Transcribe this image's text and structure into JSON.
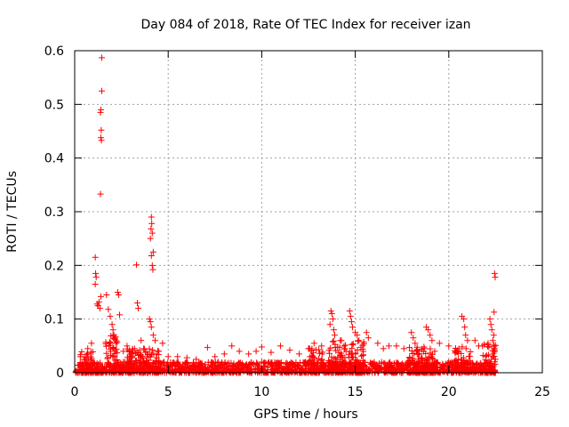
{
  "chart_data": {
    "type": "scatter",
    "title": "Day 084 of 2018, Rate Of TEC Index for receiver izan",
    "xlabel": "GPS time / hours",
    "ylabel": "ROTI / TECUs",
    "xlim": [
      0,
      25
    ],
    "ylim": [
      0,
      0.6
    ],
    "xticks": [
      0,
      5,
      10,
      15,
      20,
      25
    ],
    "xtick_labels": [
      "0",
      "5",
      "10",
      "15",
      "20",
      "25"
    ],
    "yticks": [
      0,
      0.1,
      0.2,
      0.3,
      0.4,
      0.5,
      0.6
    ],
    "ytick_labels": [
      "0",
      "0.1",
      "0.2",
      "0.3",
      "0.4",
      "0.5",
      "0.6"
    ],
    "grid": true,
    "marker": "plus",
    "color": "#ff0000",
    "series": [
      {
        "name": "ROTI",
        "points": [
          [
            1.45,
            0.587
          ],
          [
            1.45,
            0.525
          ],
          [
            1.4,
            0.49
          ],
          [
            1.38,
            0.485
          ],
          [
            1.42,
            0.452
          ],
          [
            1.4,
            0.438
          ],
          [
            1.43,
            0.433
          ],
          [
            1.38,
            0.333
          ],
          [
            1.1,
            0.215
          ],
          [
            1.12,
            0.185
          ],
          [
            1.15,
            0.178
          ],
          [
            1.1,
            0.165
          ],
          [
            1.2,
            0.128
          ],
          [
            1.25,
            0.125
          ],
          [
            1.3,
            0.132
          ],
          [
            1.35,
            0.12
          ],
          [
            1.4,
            0.142
          ],
          [
            1.7,
            0.145
          ],
          [
            1.8,
            0.118
          ],
          [
            1.9,
            0.105
          ],
          [
            2.0,
            0.09
          ],
          [
            2.05,
            0.08
          ],
          [
            2.1,
            0.07
          ],
          [
            2.15,
            0.062
          ],
          [
            2.2,
            0.055
          ],
          [
            2.3,
            0.15
          ],
          [
            2.35,
            0.145
          ],
          [
            2.4,
            0.108
          ],
          [
            3.3,
            0.201
          ],
          [
            3.35,
            0.13
          ],
          [
            3.4,
            0.12
          ],
          [
            3.55,
            0.06
          ],
          [
            4.1,
            0.29
          ],
          [
            4.12,
            0.278
          ],
          [
            4.08,
            0.268
          ],
          [
            4.15,
            0.26
          ],
          [
            4.05,
            0.25
          ],
          [
            4.2,
            0.225
          ],
          [
            4.1,
            0.218
          ],
          [
            4.15,
            0.2
          ],
          [
            4.18,
            0.192
          ],
          [
            4.0,
            0.1
          ],
          [
            4.05,
            0.095
          ],
          [
            4.1,
            0.085
          ],
          [
            4.2,
            0.07
          ],
          [
            4.3,
            0.06
          ],
          [
            4.7,
            0.055
          ],
          [
            7.1,
            0.047
          ],
          [
            8.4,
            0.05
          ],
          [
            10.0,
            0.048
          ],
          [
            11.0,
            0.05
          ],
          [
            12.8,
            0.055
          ],
          [
            13.7,
            0.115
          ],
          [
            13.75,
            0.11
          ],
          [
            13.8,
            0.1
          ],
          [
            13.65,
            0.09
          ],
          [
            13.85,
            0.08
          ],
          [
            13.9,
            0.07
          ],
          [
            14.7,
            0.115
          ],
          [
            14.75,
            0.105
          ],
          [
            14.8,
            0.095
          ],
          [
            14.85,
            0.085
          ],
          [
            15.0,
            0.075
          ],
          [
            15.1,
            0.07
          ],
          [
            15.2,
            0.06
          ],
          [
            15.6,
            0.075
          ],
          [
            15.7,
            0.065
          ],
          [
            16.8,
            0.05
          ],
          [
            18.0,
            0.075
          ],
          [
            18.1,
            0.065
          ],
          [
            18.2,
            0.055
          ],
          [
            18.8,
            0.085
          ],
          [
            18.9,
            0.08
          ],
          [
            19.0,
            0.07
          ],
          [
            19.1,
            0.06
          ],
          [
            20.7,
            0.105
          ],
          [
            20.8,
            0.1
          ],
          [
            20.85,
            0.085
          ],
          [
            20.9,
            0.07
          ],
          [
            21.0,
            0.06
          ],
          [
            22.2,
            0.1
          ],
          [
            22.25,
            0.09
          ],
          [
            22.3,
            0.08
          ],
          [
            22.4,
            0.07
          ],
          [
            22.45,
            0.185
          ],
          [
            22.48,
            0.178
          ],
          [
            22.42,
            0.113
          ],
          [
            22.35,
            0.06
          ],
          [
            22.1,
            0.055
          ],
          [
            21.8,
            0.05
          ],
          [
            0.3,
            0.03
          ],
          [
            0.5,
            0.025
          ],
          [
            0.7,
            0.045
          ],
          [
            0.9,
            0.055
          ],
          [
            2.6,
            0.04
          ],
          [
            2.8,
            0.05
          ],
          [
            3.0,
            0.035
          ],
          [
            3.2,
            0.045
          ],
          [
            4.5,
            0.04
          ],
          [
            5.0,
            0.03
          ],
          [
            5.5,
            0.03
          ],
          [
            6.0,
            0.028
          ],
          [
            6.5,
            0.025
          ],
          [
            7.5,
            0.03
          ],
          [
            8.0,
            0.035
          ],
          [
            8.8,
            0.04
          ],
          [
            9.3,
            0.035
          ],
          [
            9.7,
            0.04
          ],
          [
            10.5,
            0.038
          ],
          [
            11.5,
            0.042
          ],
          [
            12.0,
            0.035
          ],
          [
            12.5,
            0.045
          ],
          [
            13.2,
            0.05
          ],
          [
            14.2,
            0.06
          ],
          [
            16.2,
            0.055
          ],
          [
            16.5,
            0.045
          ],
          [
            17.2,
            0.05
          ],
          [
            17.6,
            0.045
          ],
          [
            19.5,
            0.055
          ],
          [
            20.0,
            0.05
          ],
          [
            21.4,
            0.06
          ],
          [
            21.6,
            0.05
          ]
        ]
      }
    ],
    "dense_bands": [
      {
        "x_start": 0.0,
        "x_end": 22.5,
        "y_low": 0.0,
        "y_high": 0.02
      },
      {
        "x_start": 0.3,
        "x_end": 1.0,
        "y_low": 0.0,
        "y_high": 0.04
      },
      {
        "x_start": 1.6,
        "x_end": 2.3,
        "y_low": 0.0,
        "y_high": 0.07
      },
      {
        "x_start": 2.8,
        "x_end": 4.5,
        "y_low": 0.0,
        "y_high": 0.045
      },
      {
        "x_start": 12.5,
        "x_end": 13.3,
        "y_low": 0.0,
        "y_high": 0.045
      },
      {
        "x_start": 13.5,
        "x_end": 15.5,
        "y_low": 0.0,
        "y_high": 0.06
      },
      {
        "x_start": 17.8,
        "x_end": 19.3,
        "y_low": 0.0,
        "y_high": 0.05
      },
      {
        "x_start": 20.3,
        "x_end": 21.2,
        "y_low": 0.0,
        "y_high": 0.05
      },
      {
        "x_start": 21.8,
        "x_end": 22.5,
        "y_low": 0.0,
        "y_high": 0.06
      }
    ]
  }
}
